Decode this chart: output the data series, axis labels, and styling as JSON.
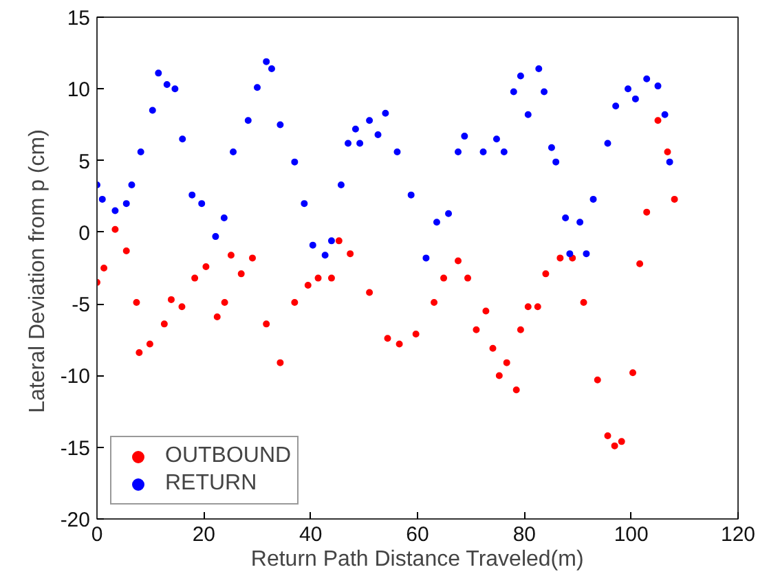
{
  "chart_data": {
    "type": "scatter",
    "xlabel": "Return Path Distance Traveled(m)",
    "ylabel": "Lateral Deviation from p  (cm)",
    "xlim": [
      0,
      120
    ],
    "ylim": [
      -20,
      15
    ],
    "xticks": [
      0,
      20,
      40,
      60,
      80,
      100,
      120
    ],
    "yticks": [
      -20,
      -15,
      -10,
      -5,
      0,
      5,
      10,
      15
    ],
    "grid": false,
    "legend": "bottom left",
    "marker": "circle",
    "series": [
      {
        "name": "OUTBOUND",
        "color": "#ff0000",
        "x": [
          0,
          1.3,
          3.4,
          5.5,
          7.4,
          7.9,
          9.9,
          12.6,
          13.9,
          15.9,
          18.3,
          20.4,
          22.5,
          23.9,
          25.1,
          27,
          29.1,
          31.7,
          34.3,
          37,
          39.5,
          41.4,
          43.9,
          45.3,
          47.4,
          51,
          54.4,
          56.6,
          59.7,
          63.1,
          64.9,
          67.6,
          69.4,
          71,
          72.8,
          74.1,
          75.3,
          76.7,
          78.5,
          79.3,
          80.7,
          82.5,
          84,
          86.7,
          89,
          91.1,
          93.7,
          95.6,
          96.9,
          98.2,
          100.3,
          101.6,
          102.9,
          105,
          106.8,
          108.1
        ],
        "values": [
          -3.5,
          -2.5,
          0.2,
          -1.3,
          -4.9,
          -8.4,
          -7.8,
          -6.4,
          -4.7,
          -5.2,
          -3.2,
          -2.4,
          -5.9,
          -4.9,
          -1.6,
          -2.9,
          -1.8,
          -6.4,
          -9.1,
          -4.9,
          -3.7,
          -3.2,
          -3.2,
          -0.6,
          -1.5,
          -4.2,
          -7.4,
          -7.8,
          -7.1,
          -4.9,
          -3.2,
          -2,
          -3.2,
          -6.8,
          -5.5,
          -8.1,
          -10,
          -9.1,
          -11,
          -6.8,
          -5.2,
          -5.2,
          -2.9,
          -1.8,
          -1.8,
          -4.9,
          -10.3,
          -14.2,
          -14.9,
          -14.6,
          -9.8,
          -2.2,
          1.4,
          7.8,
          5.6,
          2.3
        ]
      },
      {
        "name": "RETURN",
        "color": "#0000ff",
        "x": [
          0,
          1,
          3.4,
          5.5,
          6.5,
          8.2,
          10.4,
          11.5,
          13.1,
          14.6,
          16,
          17.8,
          19.6,
          22.2,
          23.8,
          25.5,
          28.3,
          30,
          31.7,
          32.7,
          34.3,
          37,
          38.8,
          40.4,
          42.7,
          43.9,
          45.7,
          47,
          48.4,
          49.2,
          51,
          52.6,
          54,
          56.2,
          58.8,
          61.6,
          63.6,
          65.8,
          67.6,
          68.8,
          72.3,
          74.8,
          76.2,
          78,
          79.3,
          80.7,
          82.7,
          83.7,
          85.1,
          85.9,
          87.7,
          88.5,
          90.4,
          91.6,
          92.9,
          95.6,
          97.1,
          99.4,
          100.8,
          102.9,
          105,
          106.3,
          107.2
        ],
        "values": [
          3.3,
          2.3,
          1.5,
          2,
          3.3,
          5.6,
          8.5,
          11.1,
          10.3,
          10,
          6.5,
          2.6,
          2,
          -0.3,
          1,
          5.6,
          7.8,
          10.1,
          11.9,
          11.4,
          7.5,
          4.9,
          2,
          -0.9,
          -1.6,
          -0.6,
          3.3,
          6.2,
          7.2,
          6.2,
          7.8,
          6.8,
          8.3,
          5.6,
          2.6,
          -1.8,
          0.7,
          1.3,
          5.6,
          6.7,
          5.6,
          6.5,
          5.6,
          9.8,
          10.9,
          8.2,
          11.4,
          9.8,
          5.9,
          4.9,
          1,
          -1.5,
          0.7,
          -1.5,
          2.3,
          6.2,
          8.8,
          10,
          9.3,
          10.7,
          10.2,
          8.2,
          4.9
        ]
      }
    ]
  }
}
